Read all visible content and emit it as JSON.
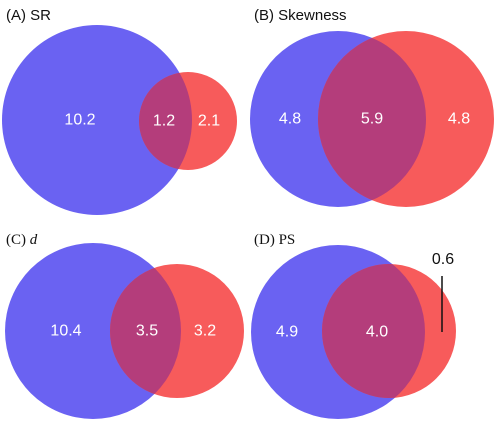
{
  "colors": {
    "set_a": "#6a62f2",
    "set_b": "#f75b5b",
    "overlap": "#b43d7b",
    "label_inside": "#ffffff",
    "label_outside": "#111111"
  },
  "panels": [
    {
      "id": "A",
      "title_prefix": "(A) ",
      "title_main": "SR",
      "title_italic": false,
      "title_font": "sans",
      "regions": {
        "left_only": "10.2",
        "both": "1.2",
        "right_only": "2.1"
      }
    },
    {
      "id": "B",
      "title_prefix": "(B) ",
      "title_main": "Skewness",
      "title_italic": false,
      "title_font": "sans",
      "regions": {
        "left_only": "4.8",
        "both": "5.9",
        "right_only": "4.8"
      }
    },
    {
      "id": "C",
      "title_prefix": "(C) ",
      "title_main": "d",
      "title_italic": true,
      "title_font": "serif",
      "regions": {
        "left_only": "10.4",
        "both": "3.5",
        "right_only": "3.2"
      }
    },
    {
      "id": "D",
      "title_prefix": "(D) ",
      "title_main": "PS",
      "title_italic": false,
      "title_font": "serif",
      "regions": {
        "left_only": "4.9",
        "both": "4.0",
        "right_only": "0.6"
      }
    }
  ]
}
